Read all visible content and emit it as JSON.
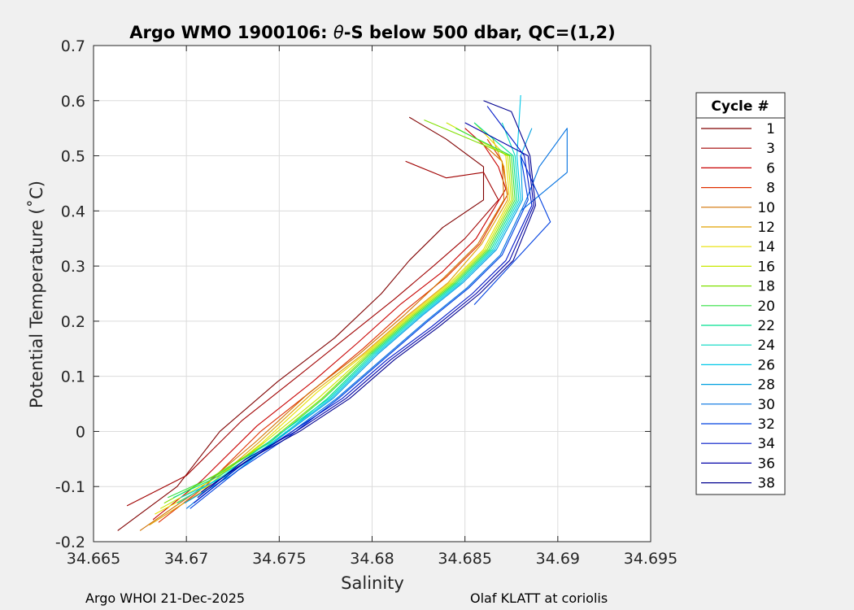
{
  "chart_data": {
    "type": "line",
    "title_prefix": "Argo WMO 1900106: ",
    "title_symbol": "θ",
    "title_suffix": "-S below 500 dbar,  QC=(1,2)",
    "xlabel": "Salinity",
    "ylabel": "Potential Temperature (˚C)",
    "xlim": [
      34.665,
      34.695
    ],
    "ylim": [
      -0.2,
      0.7
    ],
    "xticks": [
      34.665,
      34.67,
      34.675,
      34.68,
      34.685,
      34.69,
      34.695
    ],
    "yticks": [
      -0.2,
      -0.1,
      0,
      0.1,
      0.2,
      0.3,
      0.4,
      0.5,
      0.6,
      0.7
    ],
    "xtick_labels": [
      "34.665",
      "34.67",
      "34.675",
      "34.68",
      "34.685",
      "34.69",
      "34.695"
    ],
    "ytick_labels": [
      "-0.2",
      "-0.1",
      "0",
      "0.1",
      "0.2",
      "0.3",
      "0.4",
      "0.5",
      "0.6",
      "0.7"
    ],
    "grid": true,
    "legend_title": "Cycle #",
    "legend_position": "outside-right",
    "series": [
      {
        "name": "1",
        "color": "#800000",
        "x": [
          34.6663,
          34.6695,
          34.6718,
          34.6749,
          34.678,
          34.6805,
          34.682,
          34.6838,
          34.686,
          34.686,
          34.684,
          34.682
        ],
        "y": [
          -0.18,
          -0.1,
          0.0,
          0.09,
          0.17,
          0.25,
          0.31,
          0.37,
          0.42,
          0.48,
          0.53,
          0.57
        ]
      },
      {
        "name": "3",
        "color": "#a00000",
        "x": [
          34.6668,
          34.67,
          34.673,
          34.676,
          34.6786,
          34.6812,
          34.6833,
          34.685,
          34.6868,
          34.686,
          34.684,
          34.6818
        ],
        "y": [
          -0.135,
          -0.08,
          0.02,
          0.1,
          0.17,
          0.24,
          0.3,
          0.35,
          0.42,
          0.47,
          0.46,
          0.49
        ]
      },
      {
        "name": "6",
        "color": "#c80000",
        "x": [
          34.6682,
          34.6708,
          34.6738,
          34.6768,
          34.6792,
          34.6815,
          34.6838,
          34.6856,
          34.6872,
          34.6868,
          34.686,
          34.685
        ],
        "y": [
          -0.16,
          -0.09,
          0.01,
          0.09,
          0.16,
          0.23,
          0.29,
          0.35,
          0.44,
          0.48,
          0.52,
          0.55
        ]
      },
      {
        "name": "8",
        "color": "#e03000",
        "x": [
          34.6685,
          34.671,
          34.674,
          34.677,
          34.6795,
          34.6818,
          34.684,
          34.6858,
          34.6873,
          34.687,
          34.6862
        ],
        "y": [
          -0.165,
          -0.1,
          0.0,
          0.08,
          0.15,
          0.22,
          0.28,
          0.34,
          0.43,
          0.49,
          0.53
        ]
      },
      {
        "name": "10",
        "color": "#d07000",
        "x": [
          34.6675,
          34.6705,
          34.6737,
          34.6766,
          34.6793,
          34.6817,
          34.6839,
          34.6857,
          34.6871,
          34.687,
          34.686
        ],
        "y": [
          -0.18,
          -0.11,
          -0.02,
          0.07,
          0.14,
          0.21,
          0.28,
          0.34,
          0.42,
          0.49,
          0.52
        ]
      },
      {
        "name": "12",
        "color": "#e0a000",
        "x": [
          34.668,
          34.6708,
          34.6739,
          34.6768,
          34.6795,
          34.6819,
          34.6841,
          34.6859,
          34.6873,
          34.6871,
          34.6865
        ],
        "y": [
          -0.17,
          -0.11,
          -0.02,
          0.07,
          0.14,
          0.21,
          0.27,
          0.34,
          0.42,
          0.48,
          0.53
        ]
      },
      {
        "name": "14",
        "color": "#e8e000",
        "x": [
          34.6683,
          34.6711,
          34.6741,
          34.677,
          34.6796,
          34.682,
          34.6842,
          34.686,
          34.6874,
          34.6872,
          34.6855
        ],
        "y": [
          -0.15,
          -0.1,
          -0.02,
          0.07,
          0.14,
          0.21,
          0.27,
          0.33,
          0.42,
          0.5,
          0.56
        ]
      },
      {
        "name": "16",
        "color": "#c8e800",
        "x": [
          34.6686,
          34.6713,
          34.6742,
          34.6771,
          34.6797,
          34.6821,
          34.6843,
          34.6861,
          34.6875,
          34.6873,
          34.684
        ],
        "y": [
          -0.14,
          -0.09,
          -0.02,
          0.06,
          0.14,
          0.21,
          0.27,
          0.33,
          0.42,
          0.5,
          0.56
        ]
      },
      {
        "name": "18",
        "color": "#80e000",
        "x": [
          34.6688,
          34.6715,
          34.6744,
          34.6773,
          34.6798,
          34.6822,
          34.6844,
          34.6862,
          34.6876,
          34.6874,
          34.6828
        ],
        "y": [
          -0.13,
          -0.08,
          -0.02,
          0.06,
          0.14,
          0.21,
          0.27,
          0.33,
          0.42,
          0.5,
          0.565
        ]
      },
      {
        "name": "20",
        "color": "#30e040",
        "x": [
          34.669,
          34.6716,
          34.6745,
          34.6774,
          34.6799,
          34.6823,
          34.6845,
          34.6863,
          34.6877,
          34.6875,
          34.6845
        ],
        "y": [
          -0.12,
          -0.08,
          -0.02,
          0.06,
          0.14,
          0.21,
          0.27,
          0.33,
          0.42,
          0.5,
          0.55
        ]
      },
      {
        "name": "22",
        "color": "#00e090",
        "x": [
          34.6693,
          34.6718,
          34.6747,
          34.6776,
          34.68,
          34.6824,
          34.6846,
          34.6864,
          34.6878,
          34.6876,
          34.6855
        ],
        "y": [
          -0.12,
          -0.08,
          -0.02,
          0.06,
          0.14,
          0.21,
          0.27,
          0.33,
          0.42,
          0.5,
          0.56
        ]
      },
      {
        "name": "24",
        "color": "#00d8c0",
        "x": [
          34.6695,
          34.672,
          34.6748,
          34.6777,
          34.6801,
          34.6825,
          34.6847,
          34.6865,
          34.6879,
          34.6877,
          34.687
        ],
        "y": [
          -0.13,
          -0.08,
          -0.01,
          0.06,
          0.14,
          0.21,
          0.27,
          0.33,
          0.42,
          0.5,
          0.56
        ]
      },
      {
        "name": "26",
        "color": "#00c8e8",
        "x": [
          34.6697,
          34.6722,
          34.675,
          34.6778,
          34.6802,
          34.6826,
          34.6848,
          34.6866,
          34.688,
          34.6878,
          34.688
        ],
        "y": [
          -0.12,
          -0.08,
          -0.01,
          0.06,
          0.14,
          0.21,
          0.27,
          0.33,
          0.42,
          0.5,
          0.61
        ]
      },
      {
        "name": "28",
        "color": "#00a0e0",
        "x": [
          34.6699,
          34.6724,
          34.6751,
          34.6779,
          34.6803,
          34.6827,
          34.6849,
          34.6867,
          34.6881,
          34.688,
          34.6886
        ],
        "y": [
          -0.13,
          -0.08,
          -0.01,
          0.06,
          0.14,
          0.21,
          0.27,
          0.33,
          0.42,
          0.5,
          0.55
        ]
      },
      {
        "name": "30",
        "color": "#0070e0",
        "x": [
          34.67,
          34.6726,
          34.6753,
          34.6781,
          34.6805,
          34.6829,
          34.6851,
          34.6869,
          34.6883,
          34.689,
          34.6905,
          34.6905,
          34.688
        ],
        "y": [
          -0.14,
          -0.07,
          -0.01,
          0.06,
          0.13,
          0.2,
          0.26,
          0.32,
          0.42,
          0.48,
          0.55,
          0.47,
          0.4
        ]
      },
      {
        "name": "32",
        "color": "#0040e0",
        "x": [
          34.6702,
          34.6728,
          34.6755,
          34.6782,
          34.6806,
          34.683,
          34.6852,
          34.687,
          34.6884,
          34.688,
          34.6896,
          34.6855
        ],
        "y": [
          -0.14,
          -0.07,
          -0.01,
          0.06,
          0.13,
          0.2,
          0.26,
          0.32,
          0.42,
          0.5,
          0.38,
          0.23
        ]
      },
      {
        "name": "34",
        "color": "#0018c8",
        "x": [
          34.6704,
          34.673,
          34.6757,
          34.6784,
          34.6808,
          34.6832,
          34.6854,
          34.6872,
          34.6886,
          34.6882,
          34.6862
        ],
        "y": [
          -0.13,
          -0.06,
          0.0,
          0.06,
          0.13,
          0.19,
          0.25,
          0.31,
          0.41,
          0.5,
          0.59
        ]
      },
      {
        "name": "36",
        "color": "#0000a8",
        "x": [
          34.6706,
          34.6732,
          34.6759,
          34.6786,
          34.681,
          34.6834,
          34.6856,
          34.6874,
          34.6887,
          34.6884,
          34.685
        ],
        "y": [
          -0.12,
          -0.05,
          0.0,
          0.06,
          0.13,
          0.19,
          0.25,
          0.31,
          0.41,
          0.5,
          0.56
        ]
      },
      {
        "name": "38",
        "color": "#000090",
        "x": [
          34.6708,
          34.6734,
          34.6761,
          34.6788,
          34.6812,
          34.6836,
          34.6858,
          34.6876,
          34.6888,
          34.6885,
          34.6875,
          34.686
        ],
        "y": [
          -0.11,
          -0.05,
          0.0,
          0.06,
          0.13,
          0.19,
          0.25,
          0.31,
          0.41,
          0.5,
          0.58,
          0.6
        ]
      }
    ]
  },
  "footer": {
    "left": "Argo WHOI 21-Dec-2025",
    "right": "Olaf KLATT at coriolis"
  }
}
